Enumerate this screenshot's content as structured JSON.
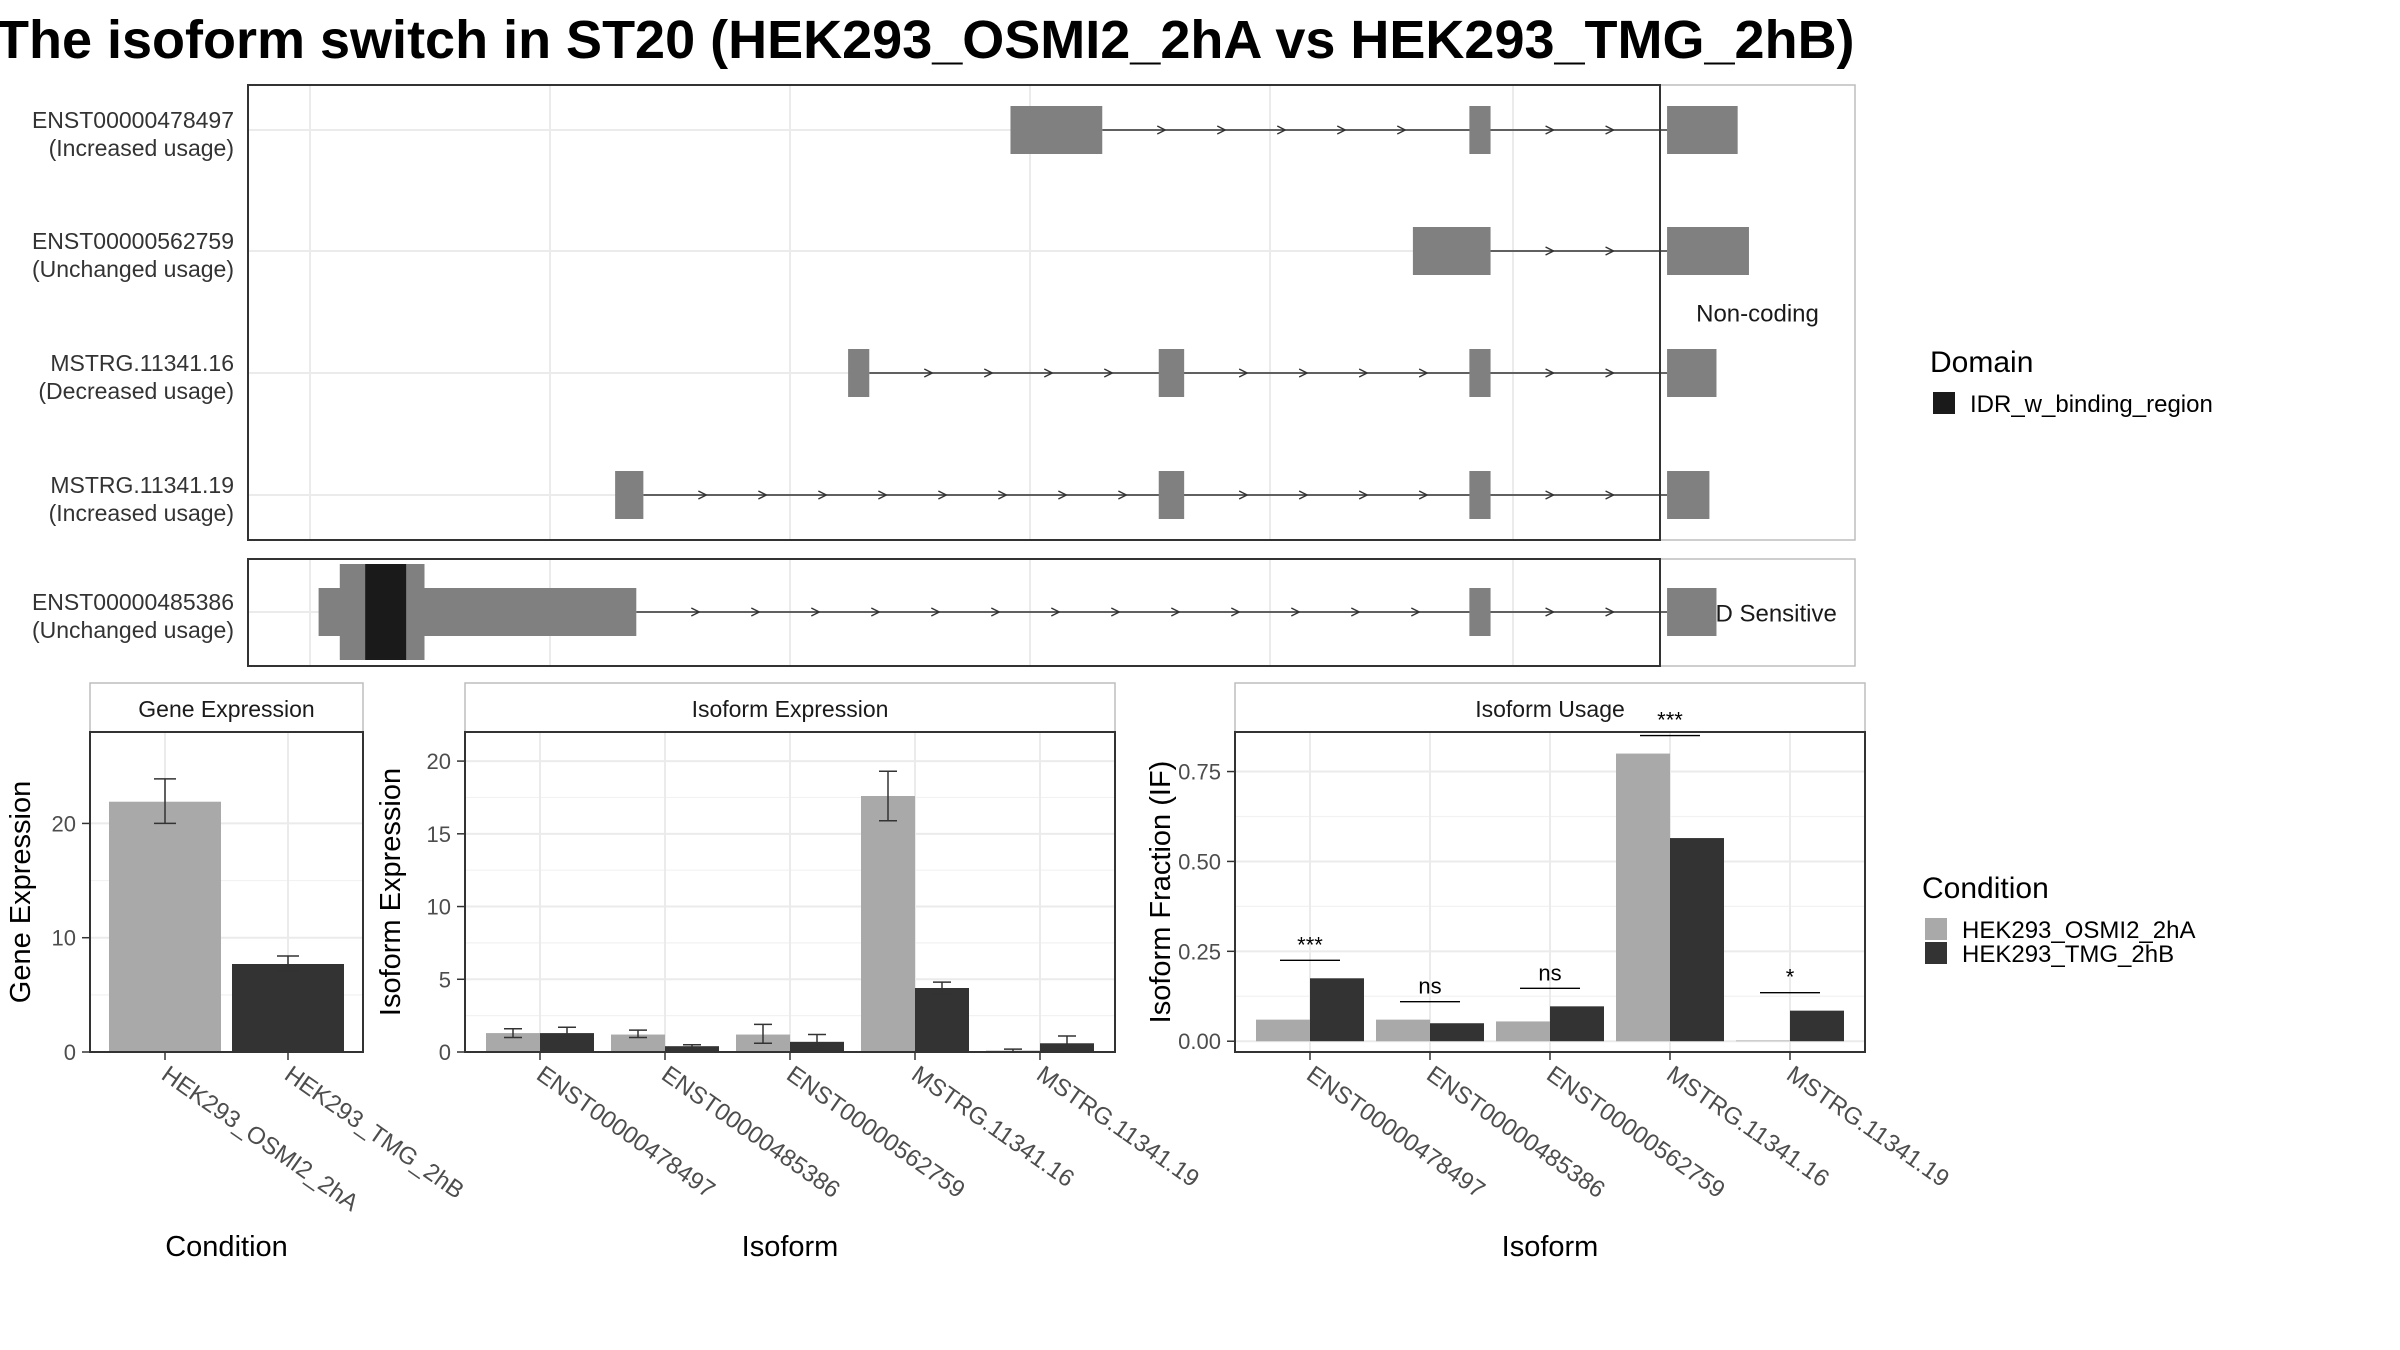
{
  "title": "The isoform switch in ST20 (HEK293_OSMI2_2hA vs HEK293_TMG_2hB)",
  "colors": {
    "exon": "#808080",
    "domain": "#1a1a1a",
    "cond_a": "#a9a9a9",
    "cond_b": "#333333",
    "grid": "#ebebeb",
    "panel_border": "#333333",
    "strip_border": "#bdbdbd"
  },
  "structure": {
    "x_range": [
      0,
      100
    ],
    "groups": [
      {
        "name": "Non-coding",
        "isoforms": [
          {
            "id": "ENST00000478497",
            "usage": "(Increased usage)",
            "exons": [
              [
                54,
                60.5
              ],
              [
                86.5,
                88
              ],
              [
                100.5,
                105.5
              ]
            ],
            "domains": []
          },
          {
            "id": "ENST00000562759",
            "usage": "(Unchanged usage)",
            "exons": [
              [
                82.5,
                88
              ],
              [
                100.5,
                106.3
              ]
            ],
            "domains": []
          },
          {
            "id": "MSTRG.11341.16",
            "usage": "(Decreased usage)",
            "exons": [
              [
                42.5,
                44
              ],
              [
                64.5,
                66.3
              ],
              [
                86.5,
                88
              ],
              [
                100.5,
                104
              ]
            ],
            "domains": []
          },
          {
            "id": "MSTRG.11341.19",
            "usage": "(Increased usage)",
            "exons": [
              [
                26,
                28
              ],
              [
                64.5,
                66.3
              ],
              [
                86.5,
                88
              ],
              [
                100.5,
                103.5
              ]
            ],
            "domains": []
          }
        ]
      },
      {
        "name": "NMD Sensitive",
        "isoforms": [
          {
            "id": "ENST00000485386",
            "usage": "(Unchanged usage)",
            "exons": [
              [
                5,
                27.5
              ],
              [
                86.5,
                88
              ],
              [
                100.5,
                104
              ]
            ],
            "domains": [
              [
                6.5,
                12.5
              ],
              [
                8.3,
                11.2
              ]
            ]
          }
        ]
      }
    ]
  },
  "legend_domain": {
    "title": "Domain",
    "items": [
      {
        "label": "IDR_w_binding_region",
        "color": "#1a1a1a"
      }
    ]
  },
  "legend_condition": {
    "title": "Condition",
    "items": [
      {
        "label": "HEK293_OSMI2_2hA",
        "color": "#a9a9a9"
      },
      {
        "label": "HEK293_TMG_2hB",
        "color": "#333333"
      }
    ]
  },
  "chart_data": [
    {
      "type": "bar",
      "title": "Gene Expression",
      "xlabel": "Condition",
      "ylabel": "Gene Expression",
      "ylim": [
        0,
        28
      ],
      "yticks": [
        0,
        10,
        20
      ],
      "categories": [
        "HEK293_OSMI2_2hA",
        "HEK293_TMG_2hB"
      ],
      "values": [
        21.9,
        7.7
      ],
      "errors": [
        [
          20.0,
          23.9
        ],
        [
          7.1,
          8.4
        ]
      ],
      "bar_colors": [
        "#a9a9a9",
        "#333333"
      ]
    },
    {
      "type": "bar",
      "title": "Isoform Expression",
      "xlabel": "Isoform",
      "ylabel": "Isoform Expression",
      "ylim": [
        0,
        22
      ],
      "yticks": [
        0,
        5,
        10,
        15,
        20
      ],
      "categories": [
        "ENST00000478497",
        "ENST00000485386",
        "ENST00000562759",
        "MSTRG.11341.16",
        "MSTRG.11341.19"
      ],
      "series": [
        {
          "name": "HEK293_OSMI2_2hA",
          "values": [
            1.3,
            1.2,
            1.2,
            17.6,
            0.1
          ],
          "errors": [
            [
              1.0,
              1.6
            ],
            [
              1.0,
              1.5
            ],
            [
              0.6,
              1.9
            ],
            [
              15.9,
              19.3
            ],
            [
              0.0,
              0.2
            ]
          ]
        },
        {
          "name": "HEK293_TMG_2hB",
          "values": [
            1.3,
            0.4,
            0.7,
            4.4,
            0.6
          ],
          "errors": [
            [
              1.0,
              1.7
            ],
            [
              0.2,
              0.5
            ],
            [
              0.3,
              1.2
            ],
            [
              4.0,
              4.8
            ],
            [
              0.3,
              1.1
            ]
          ]
        }
      ]
    },
    {
      "type": "bar",
      "title": "Isoform Usage",
      "xlabel": "Isoform",
      "ylabel": "Isoform Fraction (IF)",
      "ylim": [
        -0.03,
        0.86
      ],
      "yticks": [
        "0.00",
        "0.25",
        "0.50",
        "0.75"
      ],
      "categories": [
        "ENST00000478497",
        "ENST00000485386",
        "ENST00000562759",
        "MSTRG.11341.16",
        "MSTRG.11341.19"
      ],
      "series": [
        {
          "name": "HEK293_OSMI2_2hA",
          "values": [
            0.06,
            0.06,
            0.055,
            0.8,
            0.002
          ]
        },
        {
          "name": "HEK293_TMG_2hB",
          "values": [
            0.175,
            0.05,
            0.097,
            0.565,
            0.085
          ]
        }
      ],
      "significance": [
        "***",
        "ns",
        "ns",
        "***",
        "*"
      ]
    }
  ]
}
